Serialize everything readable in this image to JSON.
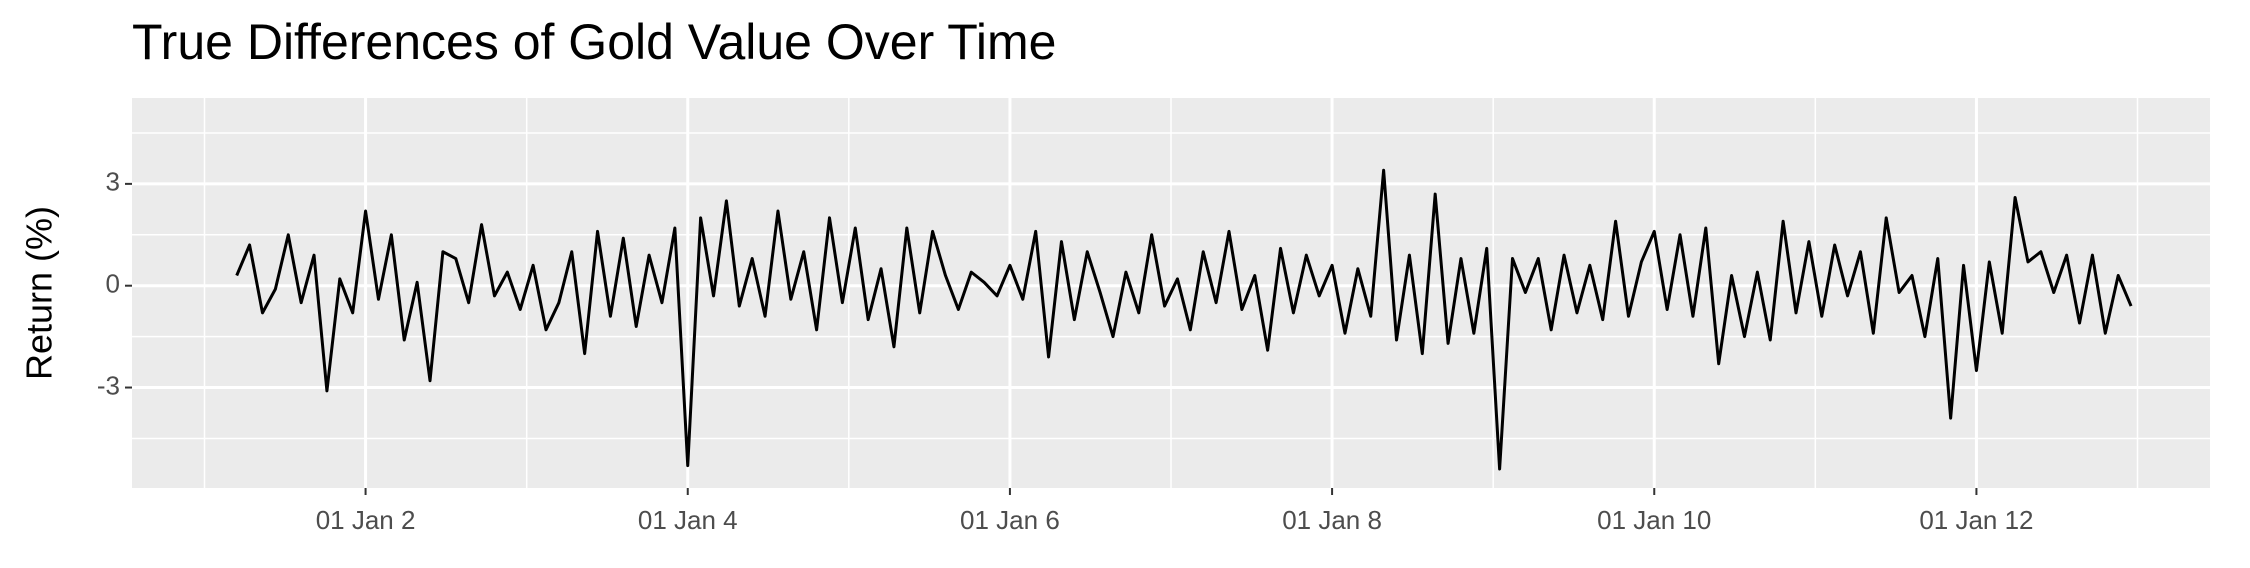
{
  "chart_data": {
    "type": "line",
    "title": "True Differences of Gold Value Over Time",
    "y_label": "Return (%)",
    "x": [
      1.2,
      1.28,
      1.36,
      1.44,
      1.52,
      1.6,
      1.68,
      1.76,
      1.84,
      1.92,
      2,
      2.08,
      2.16,
      2.24,
      2.32,
      2.4,
      2.48,
      2.56,
      2.64,
      2.72,
      2.8,
      2.88,
      2.96,
      3.04,
      3.12,
      3.2,
      3.28,
      3.36,
      3.44,
      3.52,
      3.6,
      3.68,
      3.76,
      3.84,
      3.92,
      4,
      4.08,
      4.16,
      4.24,
      4.32,
      4.4,
      4.48,
      4.56,
      4.64,
      4.72,
      4.8,
      4.88,
      4.96,
      5.04,
      5.12,
      5.2,
      5.28,
      5.36,
      5.44,
      5.52,
      5.6,
      5.68,
      5.76,
      5.84,
      5.92,
      6,
      6.08,
      6.16,
      6.24,
      6.32,
      6.4,
      6.48,
      6.56,
      6.64,
      6.72,
      6.8,
      6.88,
      6.96,
      7.04,
      7.12,
      7.2,
      7.28,
      7.36,
      7.44,
      7.52,
      7.6,
      7.68,
      7.76,
      7.84,
      7.92,
      8,
      8.08,
      8.16,
      8.24,
      8.32,
      8.4,
      8.48,
      8.56,
      8.64,
      8.72,
      8.8,
      8.88,
      8.96,
      9.04,
      9.12,
      9.2,
      9.28,
      9.36,
      9.44,
      9.52,
      9.6,
      9.68,
      9.76,
      9.84,
      9.92,
      10,
      10.08,
      10.16,
      10.24,
      10.32,
      10.4,
      10.48,
      10.56,
      10.64,
      10.72,
      10.8,
      10.88,
      10.96,
      11.04,
      11.12,
      11.2,
      11.28,
      11.36,
      11.44,
      11.52,
      11.6,
      11.68,
      11.76,
      11.84,
      11.92,
      12,
      12.08,
      12.16,
      12.24,
      12.32,
      12.4,
      12.48,
      12.56,
      12.64,
      12.72,
      12.8,
      12.88,
      12.96
    ],
    "series": [
      {
        "name": "Return",
        "color": "#000000",
        "values": [
          0.3,
          1.2,
          -0.8,
          -0.1,
          1.5,
          -0.5,
          0.9,
          -3.1,
          0.2,
          -0.8,
          2.2,
          -0.4,
          1.5,
          -1.6,
          0.1,
          -2.8,
          1.0,
          0.8,
          -0.5,
          1.8,
          -0.3,
          0.4,
          -0.7,
          0.6,
          -1.3,
          -0.5,
          1.0,
          -2.0,
          1.6,
          -0.9,
          1.4,
          -1.2,
          0.9,
          -0.5,
          1.7,
          -5.3,
          2.0,
          -0.3,
          2.5,
          -0.6,
          0.8,
          -0.9,
          2.2,
          -0.4,
          1.0,
          -1.3,
          2.0,
          -0.5,
          1.7,
          -1.0,
          0.5,
          -1.8,
          1.7,
          -0.8,
          1.6,
          0.3,
          -0.7,
          0.4,
          0.1,
          -0.3,
          0.6,
          -0.4,
          1.6,
          -2.1,
          1.3,
          -1.0,
          1.0,
          -0.2,
          -1.5,
          0.4,
          -0.8,
          1.5,
          -0.6,
          0.2,
          -1.3,
          1.0,
          -0.5,
          1.6,
          -0.7,
          0.3,
          -1.9,
          1.1,
          -0.8,
          0.9,
          -0.3,
          0.6,
          -1.4,
          0.5,
          -0.9,
          3.4,
          -1.6,
          0.9,
          -2.0,
          2.7,
          -1.7,
          0.8,
          -1.4,
          1.1,
          -5.4,
          0.8,
          -0.2,
          0.8,
          -1.3,
          0.9,
          -0.8,
          0.6,
          -1.0,
          1.9,
          -0.9,
          0.7,
          1.6,
          -0.7,
          1.5,
          -0.9,
          1.7,
          -2.3,
          0.3,
          -1.5,
          0.4,
          -1.6,
          1.9,
          -0.8,
          1.3,
          -0.9,
          1.2,
          -0.3,
          1.0,
          -1.4,
          2.0,
          -0.2,
          0.3,
          -1.5,
          0.8,
          -3.9,
          0.6,
          -2.5,
          0.7,
          -1.4,
          2.6,
          0.7,
          1.0,
          -0.2,
          0.9,
          -1.1,
          0.9,
          -1.4,
          0.3,
          -0.6
        ]
      }
    ],
    "xlim": [
      0.55,
      13.45
    ],
    "ylim": [
      -5.96,
      5.53
    ],
    "xticks": [
      {
        "value": 2,
        "label": "01 Jan 2"
      },
      {
        "value": 4,
        "label": "01 Jan 4"
      },
      {
        "value": 6,
        "label": "01 Jan 6"
      },
      {
        "value": 8,
        "label": "01 Jan 8"
      },
      {
        "value": 10,
        "label": "01 Jan 10"
      },
      {
        "value": 12,
        "label": "01 Jan 12"
      }
    ],
    "x_minor_ticks": [
      1,
      3,
      5,
      7,
      9,
      11,
      13
    ],
    "yticks": [
      -3,
      0,
      3
    ],
    "y_minor_ticks": [
      -4.5,
      -1.5,
      1.5,
      4.5
    ],
    "grid": true
  }
}
